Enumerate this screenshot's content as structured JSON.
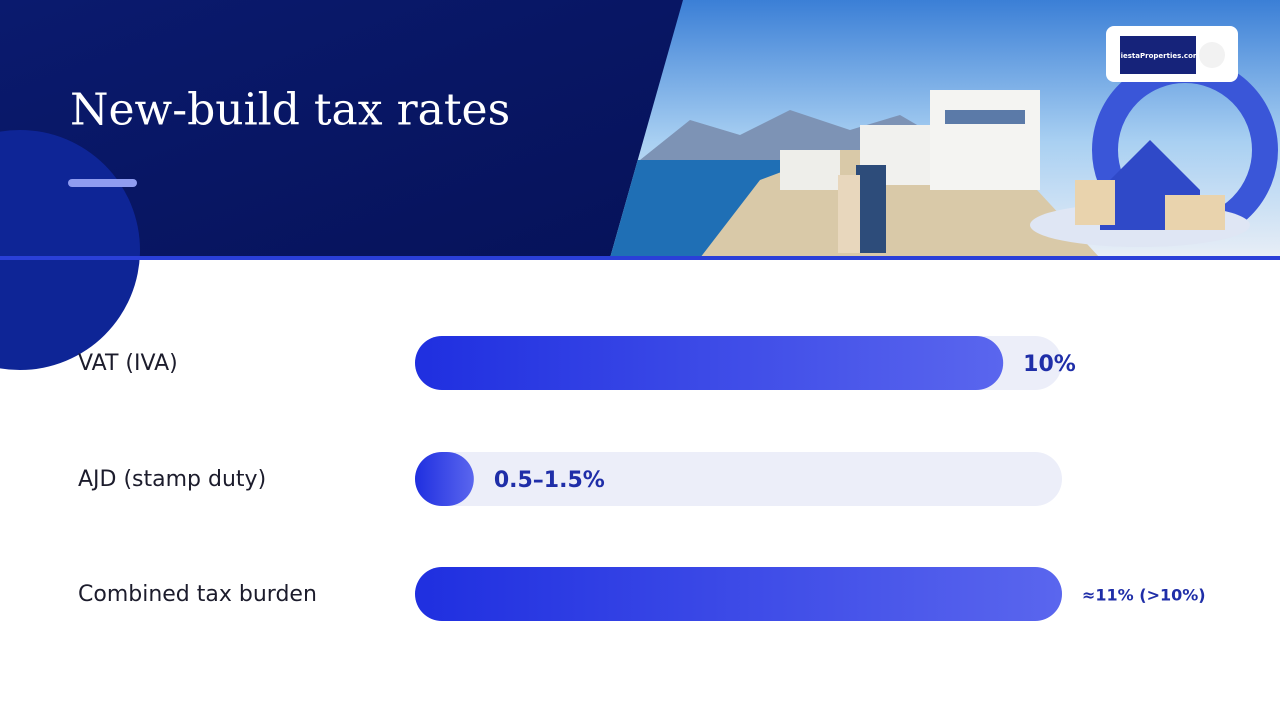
{
  "logo": "FiestaProperties.com",
  "chart_data": {
    "type": "bar",
    "orientation": "horizontal",
    "title": "New-build tax rates",
    "categories": [
      "VAT (IVA)",
      "AJD (stamp duty)",
      "Combined tax burden"
    ],
    "values": [
      10,
      1,
      11
    ],
    "value_labels": [
      "10%",
      "0.5–1.5%",
      "≈11% (>10%)"
    ],
    "xlim": [
      0,
      11
    ],
    "color": "#2233e0"
  }
}
